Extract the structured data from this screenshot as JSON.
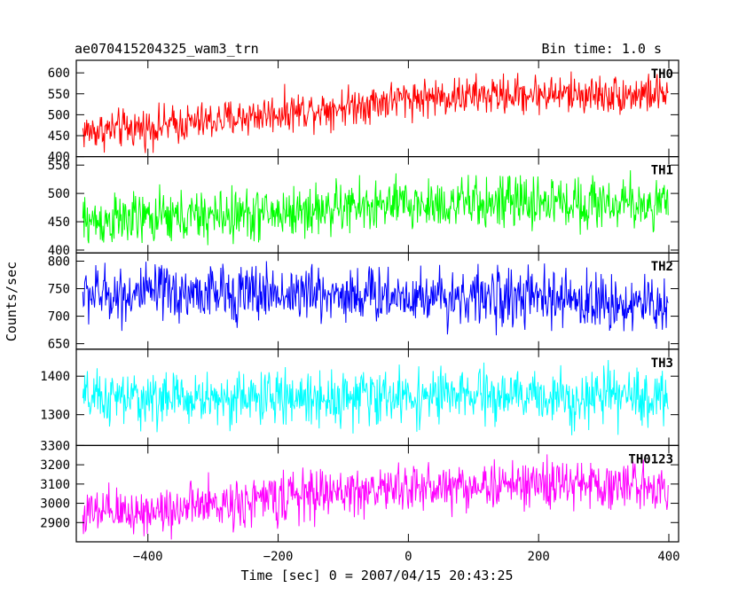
{
  "header": {
    "title": "ae070415204325_wam3_trn",
    "bin_time": "Bin time: 1.0 s"
  },
  "chart_data": {
    "type": "line",
    "title": "ae070415204325_wam3_trn",
    "xlabel": "Time [sec] 0 = 2007/04/15 20:43:25",
    "ylabel": "Counts/sec",
    "xlim": [
      -510,
      415
    ],
    "x_ticks": [
      -400,
      -200,
      0,
      200,
      400
    ],
    "x_step": 1.0,
    "x_range": [
      -500,
      399
    ],
    "grid": false,
    "panels": [
      {
        "name": "TH0",
        "color": "#ff0000",
        "ylim": [
          400,
          630
        ],
        "y_ticks": [
          400,
          450,
          500,
          550,
          600
        ],
        "trend": [
          [
            -500,
            460
          ],
          [
            -400,
            470
          ],
          [
            -300,
            485
          ],
          [
            -200,
            505
          ],
          [
            -100,
            520
          ],
          [
            0,
            540
          ],
          [
            100,
            545
          ],
          [
            200,
            550
          ],
          [
            300,
            548
          ],
          [
            399,
            550
          ]
        ],
        "noise_amplitude": 40
      },
      {
        "name": "TH1",
        "color": "#00ff00",
        "ylim": [
          395,
          565
        ],
        "y_ticks": [
          400,
          450,
          500,
          550
        ],
        "trend": [
          [
            -500,
            450
          ],
          [
            -400,
            455
          ],
          [
            -300,
            460
          ],
          [
            -200,
            465
          ],
          [
            -100,
            475
          ],
          [
            0,
            480
          ],
          [
            100,
            482
          ],
          [
            200,
            485
          ],
          [
            300,
            483
          ],
          [
            399,
            480
          ]
        ],
        "noise_amplitude": 40
      },
      {
        "name": "TH2",
        "color": "#0000ff",
        "ylim": [
          640,
          815
        ],
        "y_ticks": [
          650,
          700,
          750,
          800
        ],
        "trend": [
          [
            -500,
            740
          ],
          [
            -400,
            740
          ],
          [
            -300,
            742
          ],
          [
            -200,
            742
          ],
          [
            -100,
            740
          ],
          [
            0,
            738
          ],
          [
            100,
            735
          ],
          [
            200,
            732
          ],
          [
            300,
            725
          ],
          [
            399,
            720
          ]
        ],
        "noise_amplitude": 45
      },
      {
        "name": "TH3",
        "color": "#00ffff",
        "ylim": [
          1220,
          1470
        ],
        "y_ticks": [
          1300,
          1400
        ],
        "y_tick_labels": [
          "1300",
          "1400"
        ],
        "trend": [
          [
            -500,
            1340
          ],
          [
            -300,
            1342
          ],
          [
            -100,
            1345
          ],
          [
            100,
            1348
          ],
          [
            300,
            1345
          ],
          [
            399,
            1345
          ]
        ],
        "noise_amplitude": 60
      },
      {
        "name": "TH0123",
        "color": "#ff00ff",
        "ylim": [
          2800,
          3300
        ],
        "y_ticks": [
          2900,
          3000,
          3100,
          3200,
          3300
        ],
        "trend": [
          [
            -500,
            2940
          ],
          [
            -400,
            2960
          ],
          [
            -300,
            2990
          ],
          [
            -200,
            3030
          ],
          [
            -100,
            3060
          ],
          [
            0,
            3080
          ],
          [
            100,
            3090
          ],
          [
            200,
            3100
          ],
          [
            300,
            3095
          ],
          [
            399,
            3090
          ]
        ],
        "noise_amplitude": 110
      }
    ]
  }
}
